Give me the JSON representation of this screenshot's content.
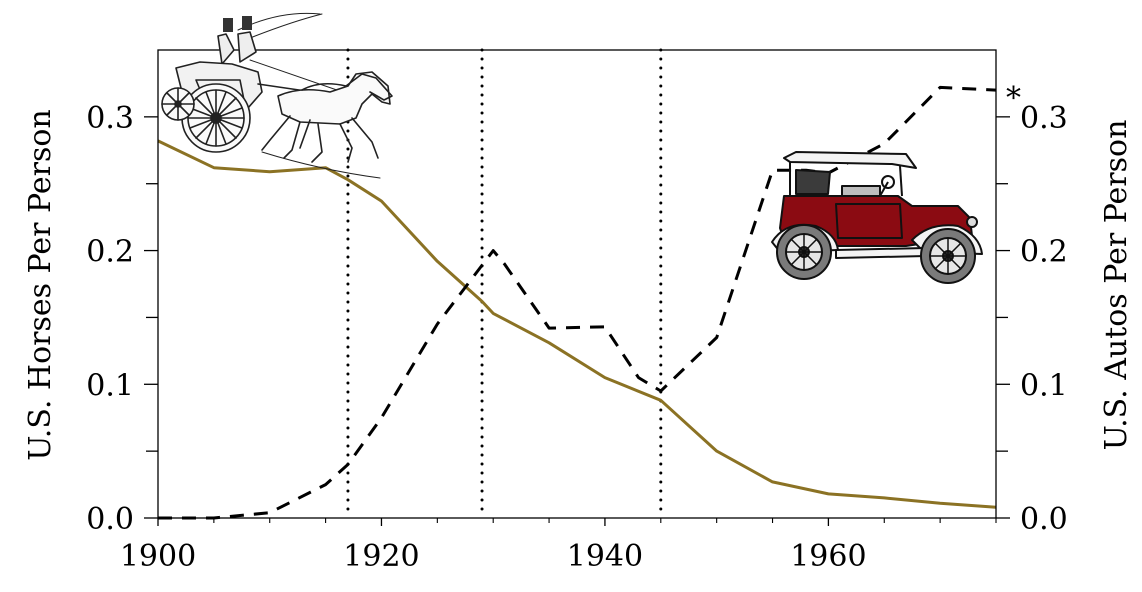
{
  "chart_data": {
    "type": "line",
    "xlabel": "",
    "ylabel_left": "U.S. Horses Per Person",
    "ylabel_right": "U.S. Autos Per Person",
    "xlim": [
      1900,
      1975
    ],
    "ylim": [
      0,
      0.35
    ],
    "x_ticks": [
      1900,
      1920,
      1940,
      1960
    ],
    "x_tick_labels": [
      "1900",
      "1920",
      "1940",
      "1960"
    ],
    "y_ticks": [
      0.0,
      0.1,
      0.2,
      0.3
    ],
    "y_tick_labels": [
      "0.0",
      "0.1",
      "0.2",
      "0.3"
    ],
    "y_minor_ticks": [
      0.05,
      0.15,
      0.25
    ],
    "vertical_reference_lines": [
      1917,
      1929,
      1945
    ],
    "annotation": "*",
    "colors": {
      "horses": "#8b7224",
      "autos": "#000000",
      "car_body": "#8b0b12"
    },
    "icons": [
      "horse-carriage-icon",
      "vintage-car-icon"
    ],
    "series": [
      {
        "key": "horses",
        "style": "solid",
        "x": [
          1900,
          1905,
          1910,
          1915,
          1917,
          1920,
          1925,
          1929,
          1930,
          1935,
          1940,
          1945,
          1950,
          1955,
          1960,
          1965,
          1970,
          1975
        ],
        "values": [
          0.282,
          0.262,
          0.259,
          0.262,
          0.253,
          0.237,
          0.192,
          0.162,
          0.153,
          0.131,
          0.105,
          0.088,
          0.05,
          0.027,
          0.018,
          0.015,
          0.011,
          0.008
        ]
      },
      {
        "key": "autos",
        "style": "dashed",
        "x": [
          1900,
          1905,
          1910,
          1915,
          1917,
          1920,
          1925,
          1930,
          1931,
          1935,
          1940,
          1943,
          1945,
          1950,
          1955,
          1958,
          1960,
          1965,
          1970,
          1975
        ],
        "values": [
          0.0,
          0.0,
          0.004,
          0.025,
          0.04,
          0.075,
          0.145,
          0.2,
          0.19,
          0.142,
          0.143,
          0.105,
          0.095,
          0.135,
          0.26,
          0.26,
          0.258,
          0.28,
          0.322,
          0.32
        ]
      }
    ]
  }
}
